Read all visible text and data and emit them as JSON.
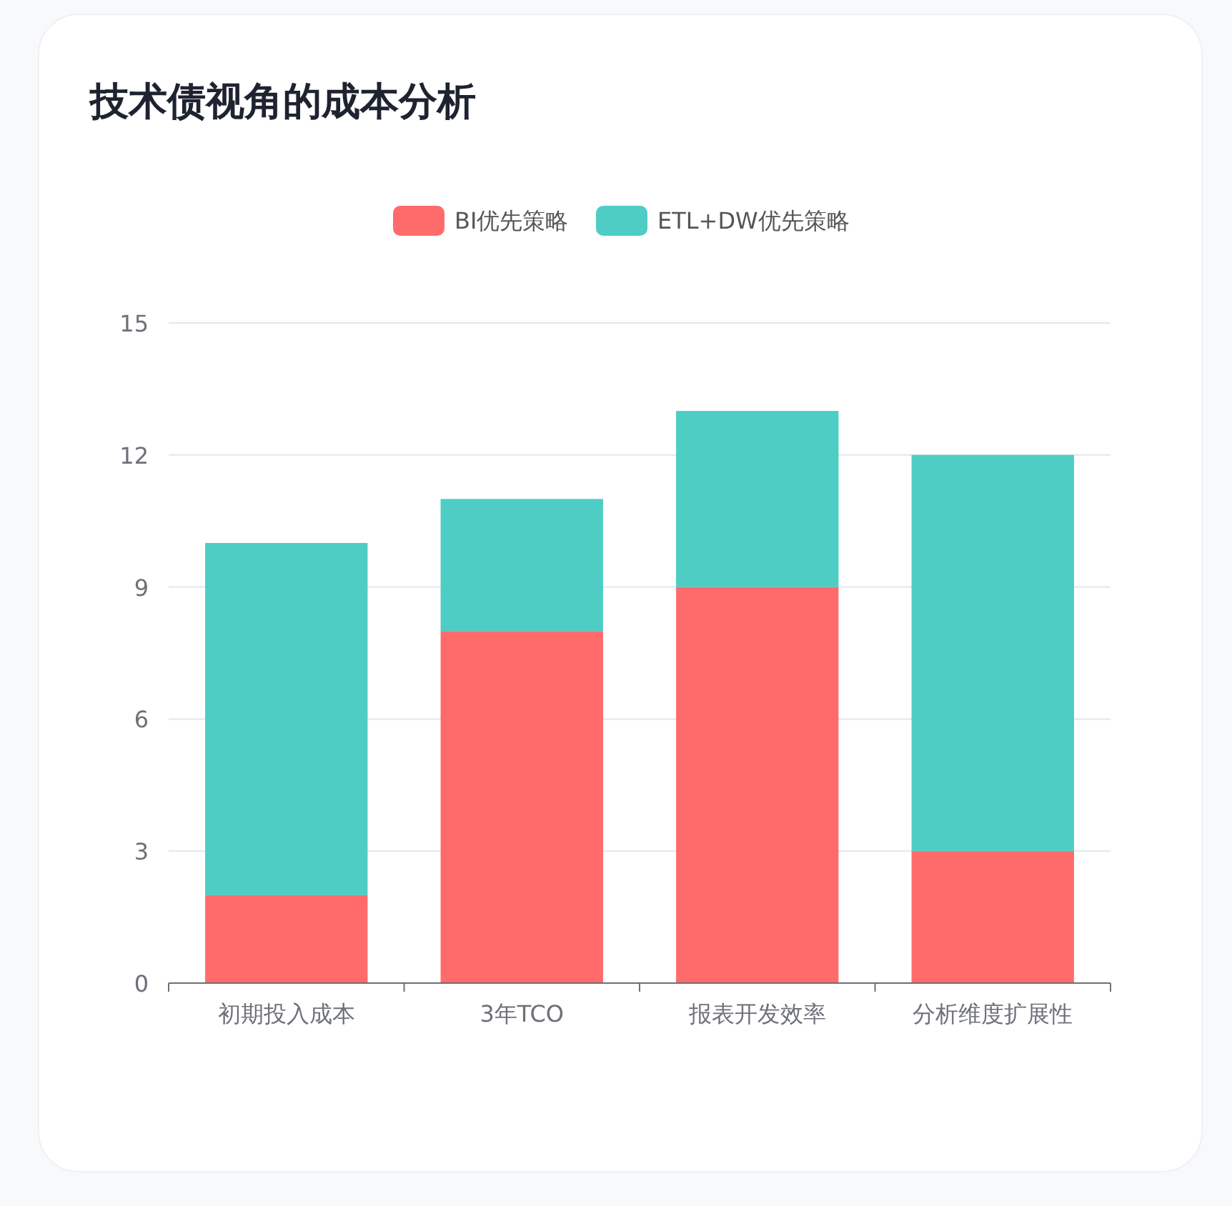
{
  "chart_data": {
    "type": "bar",
    "title": "技术债视角的成本分析",
    "categories": [
      "初期投入成本",
      "3年TCO",
      "报表开发效率",
      "分析维度扩展性"
    ],
    "series": [
      {
        "name": "BI优先策略",
        "color": "#ff6b6b",
        "values": [
          2,
          8,
          9,
          3
        ]
      },
      {
        "name": "ETL+DW优先策略",
        "color": "#4ecdc4",
        "values": [
          8,
          3,
          4,
          9
        ]
      }
    ],
    "stacked": true,
    "ylim": [
      0,
      15
    ],
    "yticks": [
      0,
      3,
      6,
      9,
      12,
      15
    ],
    "grid": "y",
    "legend": "top"
  }
}
